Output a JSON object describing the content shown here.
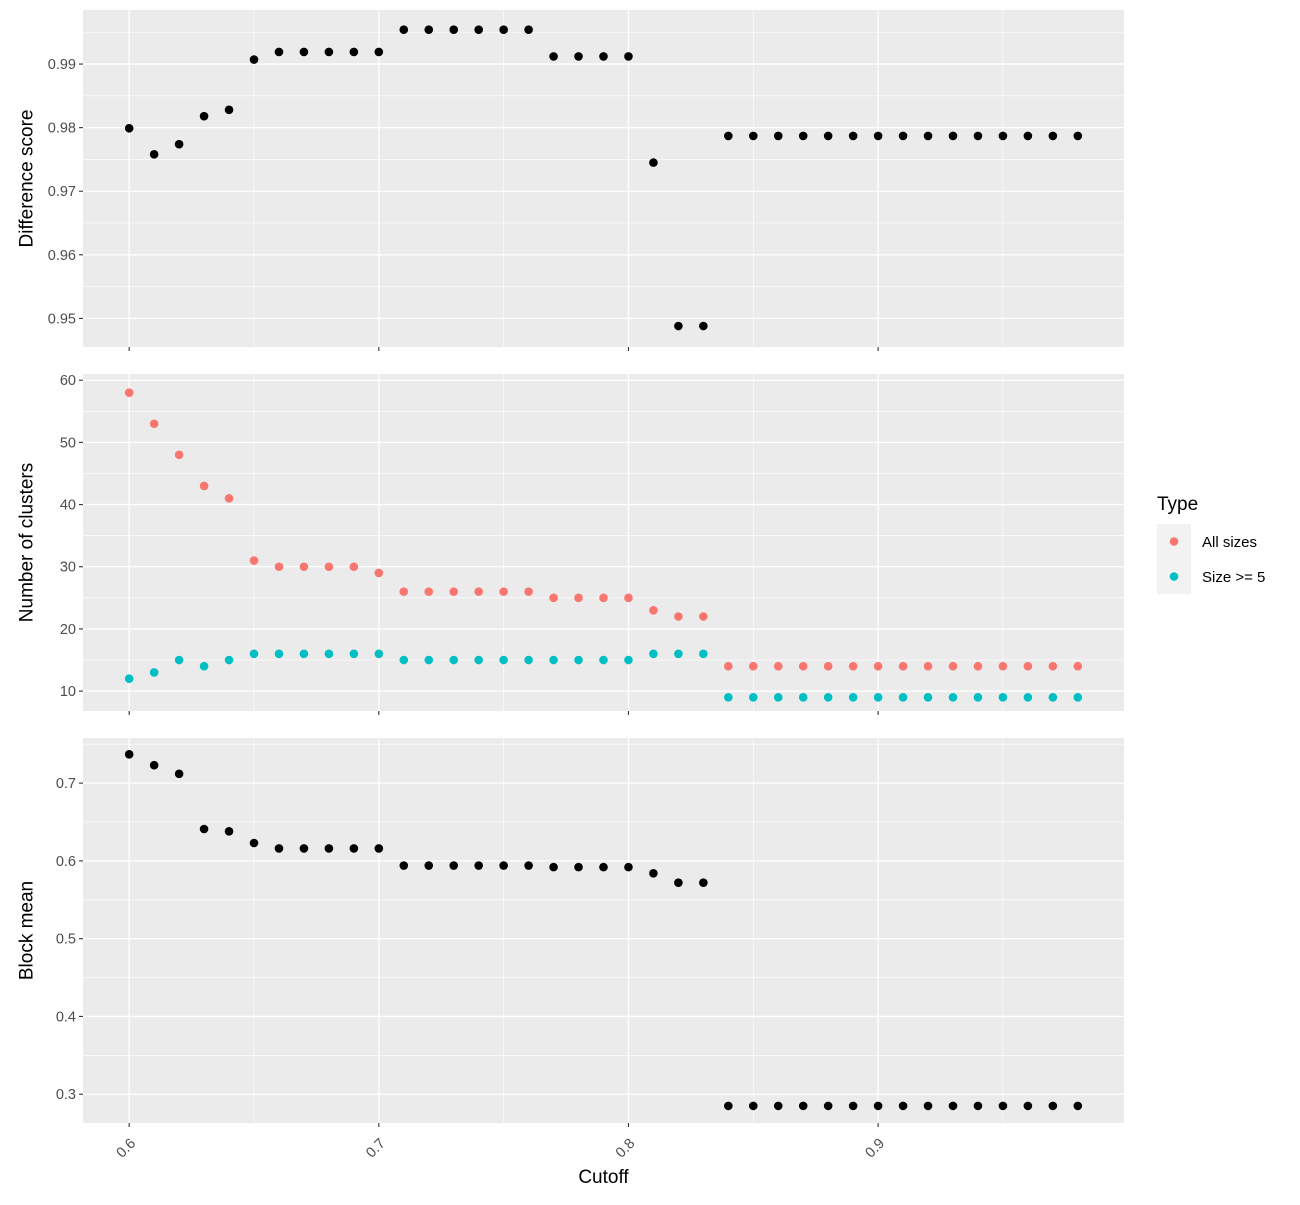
{
  "chart_data": [
    {
      "type": "scatter",
      "ylabel": "Difference score",
      "ylim": [
        0.9455,
        0.9985
      ],
      "yticks": [
        0.95,
        0.96,
        0.97,
        0.98,
        0.99
      ],
      "ytick_labels": [
        "0.95",
        "0.96",
        "0.97",
        "0.98",
        "0.99"
      ],
      "series": [
        {
          "color": "#000000",
          "x": [
            0.6,
            0.61,
            0.62,
            0.63,
            0.64,
            0.65,
            0.66,
            0.67,
            0.68,
            0.69,
            0.7,
            0.71,
            0.72,
            0.73,
            0.74,
            0.75,
            0.76,
            0.77,
            0.78,
            0.79,
            0.8,
            0.81,
            0.82,
            0.83,
            0.84,
            0.85,
            0.86,
            0.87,
            0.88,
            0.89,
            0.9,
            0.91,
            0.92,
            0.93,
            0.94,
            0.95,
            0.96,
            0.97,
            0.98
          ],
          "y": [
            0.9799,
            0.9758,
            0.9774,
            0.9818,
            0.9828,
            0.9907,
            0.9919,
            0.9919,
            0.9919,
            0.9919,
            0.9919,
            0.9954,
            0.9954,
            0.9954,
            0.9954,
            0.9954,
            0.9954,
            0.9912,
            0.9912,
            0.9912,
            0.9912,
            0.9745,
            0.9488,
            0.9488,
            0.9787,
            0.9787,
            0.9787,
            0.9787,
            0.9787,
            0.9787,
            0.9787,
            0.9787,
            0.9787,
            0.9787,
            0.9787,
            0.9787,
            0.9787,
            0.9787,
            0.9787
          ]
        }
      ]
    },
    {
      "type": "scatter",
      "ylabel": "Number of clusters",
      "ylim": [
        6.8,
        61.0
      ],
      "yticks": [
        10,
        20,
        30,
        40,
        50,
        60
      ],
      "ytick_labels": [
        "10",
        "20",
        "30",
        "40",
        "50",
        "60"
      ],
      "legend": {
        "title": "Type",
        "position": "right"
      },
      "series": [
        {
          "name": "All sizes",
          "color": "#F8766D",
          "x": [
            0.6,
            0.61,
            0.62,
            0.63,
            0.64,
            0.65,
            0.66,
            0.67,
            0.68,
            0.69,
            0.7,
            0.71,
            0.72,
            0.73,
            0.74,
            0.75,
            0.76,
            0.77,
            0.78,
            0.79,
            0.8,
            0.81,
            0.82,
            0.83,
            0.84,
            0.85,
            0.86,
            0.87,
            0.88,
            0.89,
            0.9,
            0.91,
            0.92,
            0.93,
            0.94,
            0.95,
            0.96,
            0.97,
            0.98
          ],
          "y": [
            58,
            53,
            48,
            43,
            41,
            31,
            30,
            30,
            30,
            30,
            29,
            26,
            26,
            26,
            26,
            26,
            26,
            25,
            25,
            25,
            25,
            23,
            22,
            22,
            14,
            14,
            14,
            14,
            14,
            14,
            14,
            14,
            14,
            14,
            14,
            14,
            14,
            14,
            14
          ]
        },
        {
          "name": "Size >= 5",
          "color": "#00BFC4",
          "x": [
            0.6,
            0.61,
            0.62,
            0.63,
            0.64,
            0.65,
            0.66,
            0.67,
            0.68,
            0.69,
            0.7,
            0.71,
            0.72,
            0.73,
            0.74,
            0.75,
            0.76,
            0.77,
            0.78,
            0.79,
            0.8,
            0.81,
            0.82,
            0.83,
            0.84,
            0.85,
            0.86,
            0.87,
            0.88,
            0.89,
            0.9,
            0.91,
            0.92,
            0.93,
            0.94,
            0.95,
            0.96,
            0.97,
            0.98
          ],
          "y": [
            12,
            13,
            15,
            14,
            15,
            16,
            16,
            16,
            16,
            16,
            16,
            15,
            15,
            15,
            15,
            15,
            15,
            15,
            15,
            15,
            15,
            16,
            16,
            16,
            9,
            9,
            9,
            9,
            9,
            9,
            9,
            9,
            9,
            9,
            9,
            9,
            9,
            9,
            9
          ]
        }
      ]
    },
    {
      "type": "scatter",
      "ylabel": "Block mean",
      "xlabel": "Cutoff",
      "ylim": [
        0.263,
        0.758
      ],
      "yticks": [
        0.3,
        0.4,
        0.5,
        0.6,
        0.7
      ],
      "ytick_labels": [
        "0.3",
        "0.4",
        "0.5",
        "0.6",
        "0.7"
      ],
      "xticks": [
        0.6,
        0.7,
        0.8,
        0.9
      ],
      "xtick_labels": [
        "0.6",
        "0.7",
        "0.8",
        "0.9"
      ],
      "series": [
        {
          "color": "#000000",
          "x": [
            0.6,
            0.61,
            0.62,
            0.63,
            0.64,
            0.65,
            0.66,
            0.67,
            0.68,
            0.69,
            0.7,
            0.71,
            0.72,
            0.73,
            0.74,
            0.75,
            0.76,
            0.77,
            0.78,
            0.79,
            0.8,
            0.81,
            0.82,
            0.83,
            0.84,
            0.85,
            0.86,
            0.87,
            0.88,
            0.89,
            0.9,
            0.91,
            0.92,
            0.93,
            0.94,
            0.95,
            0.96,
            0.97,
            0.98
          ],
          "y": [
            0.737,
            0.723,
            0.712,
            0.641,
            0.638,
            0.623,
            0.616,
            0.616,
            0.616,
            0.616,
            0.616,
            0.594,
            0.594,
            0.594,
            0.594,
            0.594,
            0.594,
            0.592,
            0.592,
            0.592,
            0.592,
            0.584,
            0.572,
            0.572,
            0.285,
            0.285,
            0.285,
            0.285,
            0.285,
            0.285,
            0.285,
            0.285,
            0.285,
            0.285,
            0.285,
            0.285,
            0.285,
            0.285,
            0.285
          ]
        }
      ]
    }
  ],
  "xlim": [
    0.5815,
    0.9985
  ],
  "xlabel": "Cutoff",
  "legend": {
    "title": "Type",
    "items": [
      {
        "label": "All sizes",
        "color": "#F8766D"
      },
      {
        "label": "Size >= 5",
        "color": "#00BFC4"
      }
    ]
  }
}
